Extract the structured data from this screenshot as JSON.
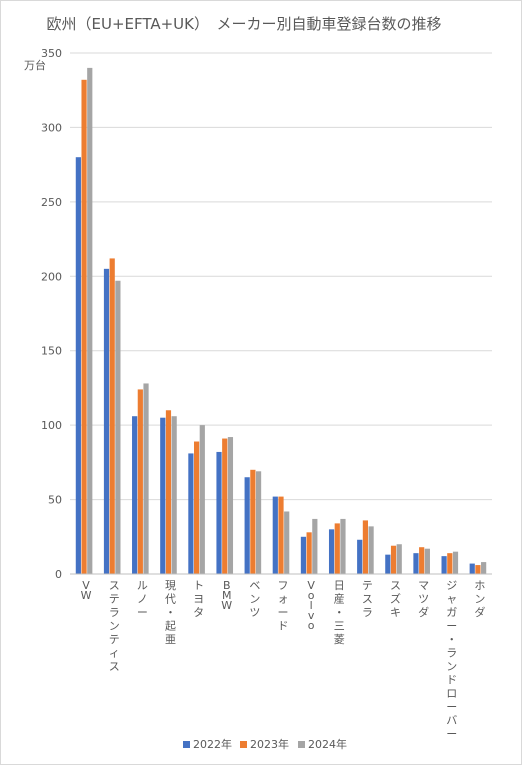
{
  "chart_data": {
    "type": "bar",
    "title": "欧州（EU+EFTA+UK）　メーカー別自動車登録台数の推移",
    "ylabel": "万台",
    "ylim": [
      0,
      350
    ],
    "yticks": [
      "0",
      "50",
      "100",
      "150",
      "200",
      "250",
      "300",
      "350"
    ],
    "grid": true,
    "legend_position": "bottom",
    "categories": [
      "VW",
      "ステランティス",
      "ルノー",
      "現代・起亜",
      "トヨタ",
      "BMW",
      "ベンツ",
      "フォード",
      "Volvo",
      "日産・三菱",
      "テスラ",
      "スズキ",
      "マツダ",
      "ジャガー・ランドローバー",
      "ホンダ"
    ],
    "series": [
      {
        "name": "2022年",
        "color": "#4472C4",
        "values": [
          280,
          205,
          106,
          105,
          81,
          82,
          65,
          52,
          25,
          30,
          23,
          13,
          14,
          12,
          7
        ]
      },
      {
        "name": "2023年",
        "color": "#ED7D31",
        "values": [
          332,
          212,
          124,
          110,
          89,
          91,
          70,
          52,
          28,
          34,
          36,
          19,
          18,
          14,
          6
        ]
      },
      {
        "name": "2024年",
        "color": "#A5A5A5",
        "values": [
          340,
          197,
          128,
          106,
          100,
          92,
          69,
          42,
          37,
          37,
          32,
          20,
          17,
          15,
          8
        ]
      }
    ]
  }
}
